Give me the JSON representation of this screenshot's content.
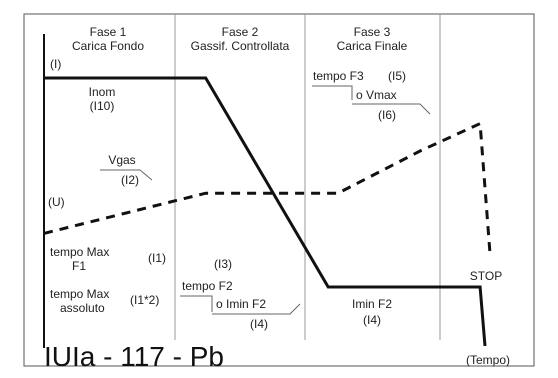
{
  "chart_data": {
    "type": "line",
    "title": "IUIa  -  117  -  Pb",
    "xlabel": "(Tempo)",
    "ylabel": "",
    "phases": [
      {
        "name": "Fase 1",
        "subtitle": "Carica Fondo"
      },
      {
        "name": "Fase 2",
        "subtitle": "Gassif. Controllata"
      },
      {
        "name": "Fase 3",
        "subtitle": "Carica Finale"
      }
    ],
    "axis_labels": {
      "current": "(I)",
      "voltage": "(U)"
    },
    "series": [
      {
        "id": "current",
        "style": "solid",
        "x": [
          0,
          33,
          58,
          89,
          90
        ],
        "y": [
          100,
          100,
          22,
          22,
          0
        ]
      },
      {
        "id": "voltage",
        "style": "dashed",
        "x": [
          0,
          33,
          60,
          77,
          89,
          91
        ],
        "y": [
          42,
          57,
          57,
          73,
          83,
          35
        ]
      }
    ],
    "stop_label": "STOP",
    "annotations": {
      "inom": "Inom",
      "i10": "(I10)",
      "vgas": "Vgas",
      "i2": "(I2)",
      "tempo_f3": "tempo F3",
      "i5": "(I5)",
      "o_vmax": "o Vmax",
      "i6": "(I6)",
      "tempo_max_f1_l1": "tempo Max",
      "tempo_max_f1_l2": "F1",
      "i1": "(I1)",
      "tempo_max_ass_l1": "tempo Max",
      "tempo_max_ass_l2": "assoluto",
      "i1_2": "(I1*2)",
      "i3": "(I3)",
      "tempo_f2": "tempo F2",
      "o_imin_f2": "o Imin F2",
      "i4_a": "(I4)",
      "imin_f2": "Imin F2",
      "i4_b": "(I4)"
    }
  }
}
